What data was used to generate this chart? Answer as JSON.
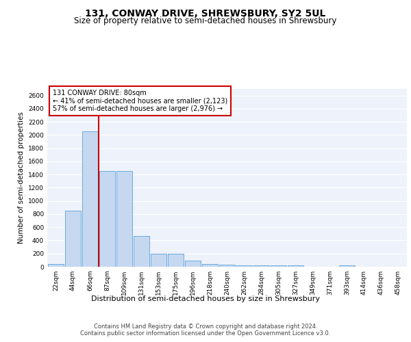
{
  "title": "131, CONWAY DRIVE, SHREWSBURY, SY2 5UL",
  "subtitle": "Size of property relative to semi-detached houses in Shrewsbury",
  "xlabel": "Distribution of semi-detached houses by size in Shrewsbury",
  "ylabel": "Number of semi-detached properties",
  "categories": [
    "22sqm",
    "44sqm",
    "66sqm",
    "87sqm",
    "109sqm",
    "131sqm",
    "153sqm",
    "175sqm",
    "196sqm",
    "218sqm",
    "240sqm",
    "262sqm",
    "284sqm",
    "305sqm",
    "327sqm",
    "349sqm",
    "371sqm",
    "393sqm",
    "414sqm",
    "436sqm",
    "458sqm"
  ],
  "values": [
    45,
    855,
    2055,
    1455,
    1455,
    465,
    200,
    200,
    90,
    45,
    30,
    20,
    20,
    20,
    20,
    0,
    0,
    25,
    0,
    0,
    0
  ],
  "bar_color": "#c5d8f0",
  "bar_edge_color": "#6aabe0",
  "vline_x_index": 2,
  "vline_color": "#cc0000",
  "annotation_text": "131 CONWAY DRIVE: 80sqm\n← 41% of semi-detached houses are smaller (2,123)\n57% of semi-detached houses are larger (2,976) →",
  "annotation_box_facecolor": "#ffffff",
  "annotation_box_edgecolor": "#cc0000",
  "fig_facecolor": "#ffffff",
  "axes_facecolor": "#eef2fa",
  "grid_color": "#ffffff",
  "ylim": [
    0,
    2700
  ],
  "yticks": [
    0,
    200,
    400,
    600,
    800,
    1000,
    1200,
    1400,
    1600,
    1800,
    2000,
    2200,
    2400,
    2600
  ],
  "footer": "Contains HM Land Registry data © Crown copyright and database right 2024.\nContains public sector information licensed under the Open Government Licence v3.0.",
  "title_fontsize": 10,
  "subtitle_fontsize": 8.5,
  "xlabel_fontsize": 8,
  "ylabel_fontsize": 7.5,
  "tick_fontsize": 6.5,
  "annotation_fontsize": 7,
  "footer_fontsize": 6
}
